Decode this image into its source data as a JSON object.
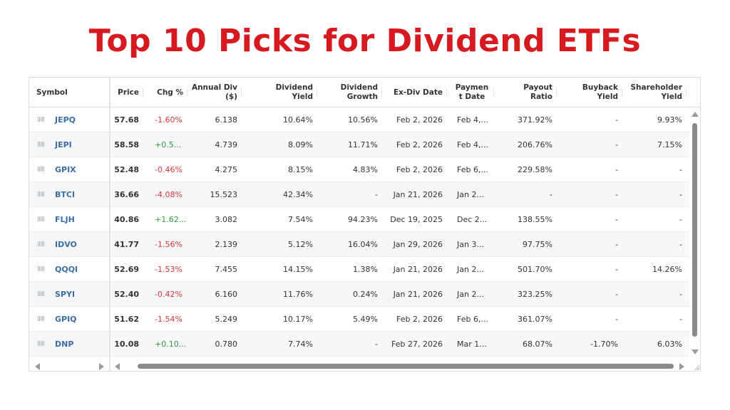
{
  "page": {
    "title": "Top 10 Picks for Dividend ETFs",
    "title_color": "#d71920"
  },
  "colors": {
    "symbol": "#3a6ea5",
    "negative": "#e0353b",
    "positive": "#2e9a3e"
  },
  "table": {
    "columns": [
      {
        "key": "symbol",
        "label": "Symbol"
      },
      {
        "key": "price",
        "label": "Price"
      },
      {
        "key": "chg",
        "label": "Chg %"
      },
      {
        "key": "annual_div",
        "label": "Annual Div ($)"
      },
      {
        "key": "yield",
        "label": "Dividend Yield"
      },
      {
        "key": "growth",
        "label": "Dividend Growth"
      },
      {
        "key": "exdiv",
        "label": "Ex-Div Date"
      },
      {
        "key": "paydate",
        "label": "Paymen t Date"
      },
      {
        "key": "payout",
        "label": "Payout Ratio"
      },
      {
        "key": "buyback",
        "label": "Buyback Yield"
      },
      {
        "key": "shareholder",
        "label": "Shareholder Yield"
      }
    ],
    "header_lines": {
      "symbol": "Symbol",
      "price": "Price",
      "chg": "Chg %",
      "annual_div_1": "Annual Div",
      "annual_div_2": "($)",
      "yield_1": "Dividend",
      "yield_2": "Yield",
      "growth_1": "Dividend",
      "growth_2": "Growth",
      "exdiv": "Ex-Div Date",
      "paydate_1": "Paymen",
      "paydate_2": "t Date",
      "payout": "Payout Ratio",
      "buyback": "Buyback Yield",
      "shareholder_1": "Shareholder",
      "shareholder_2": "Yield"
    },
    "rows": [
      {
        "symbol": "JEPQ",
        "price": "57.68",
        "chg": "-1.60%",
        "chg_dir": "neg",
        "annual_div": "6.138",
        "yield": "10.64%",
        "growth": "10.56%",
        "exdiv": "Feb 2, 2026",
        "paydate": "Feb 4,...",
        "payout": "371.92%",
        "buyback": "-",
        "shareholder": "9.93%"
      },
      {
        "symbol": "JEPI",
        "price": "58.58",
        "chg": "+0.5...",
        "chg_dir": "pos",
        "annual_div": "4.739",
        "yield": "8.09%",
        "growth": "11.71%",
        "exdiv": "Feb 2, 2026",
        "paydate": "Feb 4,...",
        "payout": "206.76%",
        "buyback": "-",
        "shareholder": "7.15%"
      },
      {
        "symbol": "GPIX",
        "price": "52.48",
        "chg": "-0.46%",
        "chg_dir": "neg",
        "annual_div": "4.275",
        "yield": "8.15%",
        "growth": "4.83%",
        "exdiv": "Feb 2, 2026",
        "paydate": "Feb 6,...",
        "payout": "229.58%",
        "buyback": "-",
        "shareholder": "-"
      },
      {
        "symbol": "BTCI",
        "price": "36.66",
        "chg": "-4.08%",
        "chg_dir": "neg",
        "annual_div": "15.523",
        "yield": "42.34%",
        "growth": "-",
        "exdiv": "Jan 21, 2026",
        "paydate": "Jan 2...",
        "payout": "-",
        "buyback": "-",
        "shareholder": "-"
      },
      {
        "symbol": "FLJH",
        "price": "40.86",
        "chg": "+1.62...",
        "chg_dir": "pos",
        "annual_div": "3.082",
        "yield": "7.54%",
        "growth": "94.23%",
        "exdiv": "Dec 19, 2025",
        "paydate": "Dec 2...",
        "payout": "138.55%",
        "buyback": "-",
        "shareholder": "-"
      },
      {
        "symbol": "IDVO",
        "price": "41.77",
        "chg": "-1.56%",
        "chg_dir": "neg",
        "annual_div": "2.139",
        "yield": "5.12%",
        "growth": "16.04%",
        "exdiv": "Jan 29, 2026",
        "paydate": "Jan 3...",
        "payout": "97.75%",
        "buyback": "-",
        "shareholder": "-"
      },
      {
        "symbol": "QQQI",
        "price": "52.69",
        "chg": "-1.53%",
        "chg_dir": "neg",
        "annual_div": "7.455",
        "yield": "14.15%",
        "growth": "1.38%",
        "exdiv": "Jan 21, 2026",
        "paydate": "Jan 2...",
        "payout": "501.70%",
        "buyback": "-",
        "shareholder": "14.26%"
      },
      {
        "symbol": "SPYI",
        "price": "52.40",
        "chg": "-0.42%",
        "chg_dir": "neg",
        "annual_div": "6.160",
        "yield": "11.76%",
        "growth": "0.24%",
        "exdiv": "Jan 21, 2026",
        "paydate": "Jan 2...",
        "payout": "323.25%",
        "buyback": "-",
        "shareholder": "-"
      },
      {
        "symbol": "GPIQ",
        "price": "51.62",
        "chg": "-1.54%",
        "chg_dir": "neg",
        "annual_div": "5.249",
        "yield": "10.17%",
        "growth": "5.49%",
        "exdiv": "Feb 2, 2026",
        "paydate": "Feb 6,...",
        "payout": "361.07%",
        "buyback": "-",
        "shareholder": "-"
      },
      {
        "symbol": "DNP",
        "price": "10.08",
        "chg": "+0.10...",
        "chg_dir": "pos",
        "annual_div": "0.780",
        "yield": "7.74%",
        "growth": "-",
        "exdiv": "Feb 27, 2026",
        "paydate": "Mar 1...",
        "payout": "68.07%",
        "buyback": "-1.70%",
        "shareholder": "6.03%"
      }
    ]
  },
  "icons": {
    "row_handle": "drag-grip-icon",
    "scroll_up": "triangle-up",
    "scroll_down": "triangle-down",
    "scroll_left": "triangle-left",
    "scroll_right": "triangle-right",
    "resize": "resize-grip-icon"
  }
}
